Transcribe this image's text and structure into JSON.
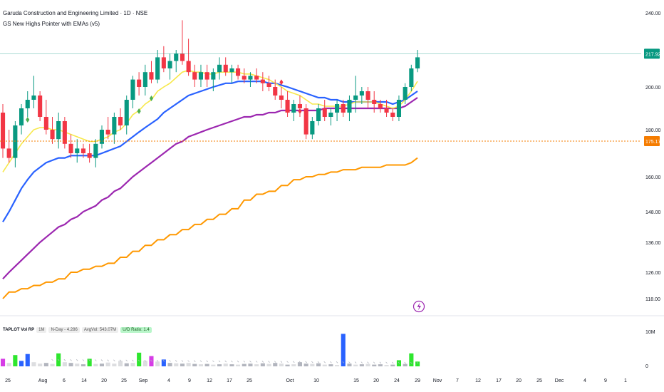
{
  "header": {
    "title": "Garuda Construction and Engineering Limited · 1D · NSE",
    "indicator": "GS New Highs Pointer with EMAs (v5)"
  },
  "volume_header": {
    "name": "TAPLOT Vol RP",
    "chips": [
      "1M",
      "N-Day - 4.286",
      "AvgVol: 543.07M",
      "U/D Ratio: 1.4"
    ]
  },
  "colors": {
    "up": "#089981",
    "down": "#f23645",
    "ema_fast": "#f7e84a",
    "ema_blue": "#2962ff",
    "ema_purple": "#9c27b0",
    "step": "#ff9800",
    "diamond": "#4caf50",
    "last_price": "#089981",
    "level_price": "#f57c00",
    "vol_green": "#2ee62e",
    "vol_blue": "#2962ff",
    "vol_magenta": "#d63ce6",
    "vol_gray": "#b2b5be",
    "vol_light": "#dcdde0",
    "alert_icon": "#9c27b0"
  },
  "chart_data": {
    "type": "candlestick",
    "timeframe": "1D",
    "y_axis_ticks": [
      "240.00",
      "200.00",
      "180.00",
      "160.00",
      "148.00",
      "136.00",
      "126.00",
      "118.00"
    ],
    "x_axis_ticks": [
      "25",
      "Aug",
      "6",
      "14",
      "20",
      "25",
      "Sep",
      "4",
      "9",
      "12",
      "17",
      "25",
      "Oct",
      "10",
      "15",
      "20",
      "24",
      "29",
      "Nov",
      "7",
      "12",
      "17",
      "20",
      "25",
      "Dec",
      "4",
      "9",
      "1"
    ],
    "last_price_label": "217.92",
    "level_label": "175.17",
    "volume_axis_ticks": [
      "10M",
      "0"
    ],
    "candles": [
      {
        "o": 188,
        "h": 192,
        "l": 168,
        "c": 172
      },
      {
        "o": 172,
        "h": 180,
        "l": 166,
        "c": 168
      },
      {
        "o": 168,
        "h": 184,
        "l": 164,
        "c": 182
      },
      {
        "o": 182,
        "h": 192,
        "l": 178,
        "c": 190
      },
      {
        "o": 190,
        "h": 198,
        "l": 186,
        "c": 194
      },
      {
        "o": 194,
        "h": 206,
        "l": 190,
        "c": 196
      },
      {
        "o": 196,
        "h": 198,
        "l": 184,
        "c": 186
      },
      {
        "o": 186,
        "h": 194,
        "l": 178,
        "c": 180
      },
      {
        "o": 180,
        "h": 186,
        "l": 174,
        "c": 176
      },
      {
        "o": 176,
        "h": 188,
        "l": 172,
        "c": 184
      },
      {
        "o": 184,
        "h": 186,
        "l": 172,
        "c": 174
      },
      {
        "o": 174,
        "h": 178,
        "l": 168,
        "c": 170
      },
      {
        "o": 170,
        "h": 176,
        "l": 166,
        "c": 172
      },
      {
        "o": 172,
        "h": 174,
        "l": 168,
        "c": 170
      },
      {
        "o": 170,
        "h": 174,
        "l": 166,
        "c": 168
      },
      {
        "o": 168,
        "h": 176,
        "l": 164,
        "c": 174
      },
      {
        "o": 174,
        "h": 182,
        "l": 172,
        "c": 180
      },
      {
        "o": 180,
        "h": 186,
        "l": 176,
        "c": 178
      },
      {
        "o": 178,
        "h": 188,
        "l": 174,
        "c": 186
      },
      {
        "o": 186,
        "h": 190,
        "l": 180,
        "c": 182
      },
      {
        "o": 182,
        "h": 196,
        "l": 178,
        "c": 194
      },
      {
        "o": 194,
        "h": 206,
        "l": 190,
        "c": 204
      },
      {
        "o": 204,
        "h": 208,
        "l": 196,
        "c": 200
      },
      {
        "o": 200,
        "h": 212,
        "l": 196,
        "c": 208
      },
      {
        "o": 208,
        "h": 214,
        "l": 202,
        "c": 204
      },
      {
        "o": 204,
        "h": 220,
        "l": 202,
        "c": 216
      },
      {
        "o": 216,
        "h": 222,
        "l": 208,
        "c": 210
      },
      {
        "o": 210,
        "h": 218,
        "l": 204,
        "c": 214
      },
      {
        "o": 214,
        "h": 220,
        "l": 208,
        "c": 218
      },
      {
        "o": 218,
        "h": 236,
        "l": 212,
        "c": 214
      },
      {
        "o": 214,
        "h": 226,
        "l": 206,
        "c": 208
      },
      {
        "o": 208,
        "h": 212,
        "l": 200,
        "c": 204
      },
      {
        "o": 204,
        "h": 212,
        "l": 200,
        "c": 208
      },
      {
        "o": 208,
        "h": 212,
        "l": 200,
        "c": 204
      },
      {
        "o": 204,
        "h": 210,
        "l": 198,
        "c": 208
      },
      {
        "o": 208,
        "h": 216,
        "l": 204,
        "c": 212
      },
      {
        "o": 212,
        "h": 216,
        "l": 206,
        "c": 208
      },
      {
        "o": 208,
        "h": 212,
        "l": 202,
        "c": 210
      },
      {
        "o": 210,
        "h": 212,
        "l": 204,
        "c": 206
      },
      {
        "o": 206,
        "h": 210,
        "l": 202,
        "c": 204
      },
      {
        "o": 204,
        "h": 208,
        "l": 200,
        "c": 206
      },
      {
        "o": 206,
        "h": 210,
        "l": 202,
        "c": 204
      },
      {
        "o": 204,
        "h": 208,
        "l": 198,
        "c": 202
      },
      {
        "o": 202,
        "h": 206,
        "l": 198,
        "c": 200
      },
      {
        "o": 200,
        "h": 204,
        "l": 194,
        "c": 196
      },
      {
        "o": 196,
        "h": 200,
        "l": 190,
        "c": 194
      },
      {
        "o": 194,
        "h": 198,
        "l": 186,
        "c": 188
      },
      {
        "o": 188,
        "h": 194,
        "l": 184,
        "c": 192
      },
      {
        "o": 192,
        "h": 196,
        "l": 186,
        "c": 190
      },
      {
        "o": 190,
        "h": 192,
        "l": 176,
        "c": 178
      },
      {
        "o": 178,
        "h": 186,
        "l": 176,
        "c": 184
      },
      {
        "o": 184,
        "h": 192,
        "l": 182,
        "c": 190
      },
      {
        "o": 190,
        "h": 194,
        "l": 184,
        "c": 186
      },
      {
        "o": 186,
        "h": 190,
        "l": 182,
        "c": 188
      },
      {
        "o": 188,
        "h": 194,
        "l": 184,
        "c": 192
      },
      {
        "o": 192,
        "h": 194,
        "l": 186,
        "c": 188
      },
      {
        "o": 188,
        "h": 196,
        "l": 184,
        "c": 194
      },
      {
        "o": 194,
        "h": 206,
        "l": 188,
        "c": 196
      },
      {
        "o": 196,
        "h": 200,
        "l": 192,
        "c": 198
      },
      {
        "o": 198,
        "h": 200,
        "l": 190,
        "c": 194
      },
      {
        "o": 194,
        "h": 198,
        "l": 188,
        "c": 192
      },
      {
        "o": 192,
        "h": 194,
        "l": 188,
        "c": 190
      },
      {
        "o": 190,
        "h": 194,
        "l": 186,
        "c": 188
      },
      {
        "o": 188,
        "h": 190,
        "l": 184,
        "c": 186
      },
      {
        "o": 186,
        "h": 196,
        "l": 184,
        "c": 194
      },
      {
        "o": 194,
        "h": 202,
        "l": 192,
        "c": 200
      },
      {
        "o": 200,
        "h": 212,
        "l": 198,
        "c": 210
      },
      {
        "o": 210,
        "h": 220,
        "l": 208,
        "c": 216
      }
    ],
    "series": [
      {
        "values": [
          162,
          166,
          170,
          174,
          177,
          180,
          181,
          181,
          180,
          180,
          179,
          178,
          177,
          176,
          175,
          175,
          176,
          177,
          179,
          180,
          183,
          187,
          189,
          192,
          194,
          198,
          200,
          202,
          205,
          208,
          209,
          208,
          208,
          207,
          207,
          208,
          208,
          208,
          208,
          207,
          207,
          206,
          205,
          204,
          202,
          200,
          198,
          197,
          196,
          194,
          192,
          192,
          191,
          191,
          191,
          191,
          192,
          193,
          193,
          193,
          193,
          192,
          191,
          190,
          191,
          194,
          198,
          203
        ]
      },
      {
        "values": [
          144,
          148,
          152,
          156,
          159,
          162,
          164,
          166,
          167,
          168,
          168,
          169,
          169,
          169,
          169,
          169,
          170,
          171,
          172,
          173,
          175,
          177,
          179,
          181,
          183,
          185,
          188,
          190,
          192,
          194,
          196,
          197,
          198,
          199,
          200,
          201,
          202,
          202,
          203,
          203,
          203,
          203,
          203,
          202,
          202,
          201,
          200,
          199,
          198,
          197,
          196,
          195,
          195,
          194,
          194,
          193,
          193,
          193,
          193,
          193,
          193,
          193,
          193,
          192,
          193,
          194,
          196,
          198
        ]
      },
      {
        "values": [
          124,
          126,
          128,
          130,
          132,
          134,
          136,
          138,
          140,
          142,
          143,
          145,
          146,
          148,
          149,
          150,
          152,
          153,
          155,
          156,
          158,
          160,
          162,
          164,
          166,
          168,
          170,
          172,
          174,
          175,
          177,
          178,
          179,
          180,
          181,
          182,
          183,
          184,
          185,
          186,
          186,
          187,
          187,
          188,
          188,
          189,
          189,
          189,
          189,
          189,
          189,
          189,
          190,
          190,
          190,
          190,
          190,
          190,
          190,
          190,
          190,
          190,
          190,
          190,
          190,
          191,
          193,
          195
        ]
      },
      {
        "values": [
          118,
          120,
          120,
          121,
          121,
          122,
          122,
          123,
          123,
          124,
          124,
          126,
          126,
          127,
          127,
          128,
          128,
          129,
          129,
          131,
          131,
          133,
          133,
          135,
          135,
          137,
          137,
          139,
          139,
          141,
          141,
          143,
          143,
          145,
          145,
          147,
          147,
          149,
          149,
          152,
          152,
          154,
          154,
          155,
          155,
          157,
          157,
          159,
          159,
          160,
          160,
          161,
          161,
          162,
          162,
          163,
          163,
          163,
          164,
          164,
          164,
          164,
          165,
          165,
          165,
          165,
          166,
          168
        ]
      }
    ],
    "diamonds": [
      {
        "i": 4,
        "v": 186,
        "pos": "below",
        "color": "green"
      },
      {
        "i": 22,
        "v": 190,
        "pos": "below",
        "color": "green"
      },
      {
        "i": 24,
        "v": 196,
        "pos": "below",
        "color": "green"
      },
      {
        "i": 45,
        "v": 201,
        "pos": "above",
        "color": "red"
      },
      {
        "i": 48,
        "v": 190,
        "pos": "below",
        "color": "red"
      }
    ],
    "volume": [
      {
        "v": 2.2,
        "c": "vol_magenta"
      },
      {
        "v": 1.0,
        "c": "vol_light"
      },
      {
        "v": 3.3,
        "c": "vol_green"
      },
      {
        "v": 1.6,
        "c": "vol_blue"
      },
      {
        "v": 3.6,
        "c": "vol_blue"
      },
      {
        "v": 1.2,
        "c": "vol_light"
      },
      {
        "v": 0.8,
        "c": "vol_light"
      },
      {
        "v": 1.0,
        "c": "vol_gray"
      },
      {
        "v": 0.7,
        "c": "vol_light"
      },
      {
        "v": 3.8,
        "c": "vol_green"
      },
      {
        "v": 1.2,
        "c": "vol_light"
      },
      {
        "v": 1.0,
        "c": "vol_gray"
      },
      {
        "v": 0.8,
        "c": "vol_light"
      },
      {
        "v": 0.6,
        "c": "vol_gray"
      },
      {
        "v": 2.2,
        "c": "vol_green"
      },
      {
        "v": 0.7,
        "c": "vol_light"
      },
      {
        "v": 0.8,
        "c": "vol_gray"
      },
      {
        "v": 1.1,
        "c": "vol_light"
      },
      {
        "v": 0.8,
        "c": "vol_light"
      },
      {
        "v": 1.6,
        "c": "vol_light"
      },
      {
        "v": 0.9,
        "c": "vol_gray"
      },
      {
        "v": 1.0,
        "c": "vol_light"
      },
      {
        "v": 4.0,
        "c": "vol_green"
      },
      {
        "v": 1.6,
        "c": "vol_light"
      },
      {
        "v": 3.0,
        "c": "vol_magenta"
      },
      {
        "v": 1.4,
        "c": "vol_light"
      },
      {
        "v": 2.0,
        "c": "vol_blue"
      },
      {
        "v": 1.0,
        "c": "vol_gray"
      },
      {
        "v": 0.9,
        "c": "vol_light"
      },
      {
        "v": 0.8,
        "c": "vol_gray"
      },
      {
        "v": 1.0,
        "c": "vol_light"
      },
      {
        "v": 0.7,
        "c": "vol_gray"
      },
      {
        "v": 0.6,
        "c": "vol_light"
      },
      {
        "v": 0.7,
        "c": "vol_gray"
      },
      {
        "v": 0.5,
        "c": "vol_light"
      },
      {
        "v": 0.6,
        "c": "vol_gray"
      },
      {
        "v": 0.8,
        "c": "vol_light"
      },
      {
        "v": 0.6,
        "c": "vol_gray"
      },
      {
        "v": 0.5,
        "c": "vol_light"
      },
      {
        "v": 0.7,
        "c": "vol_gray"
      },
      {
        "v": 0.8,
        "c": "vol_gray"
      },
      {
        "v": 0.6,
        "c": "vol_light"
      },
      {
        "v": 0.9,
        "c": "vol_gray"
      },
      {
        "v": 0.7,
        "c": "vol_light"
      },
      {
        "v": 1.0,
        "c": "vol_gray"
      },
      {
        "v": 0.8,
        "c": "vol_light"
      },
      {
        "v": 0.5,
        "c": "vol_gray"
      },
      {
        "v": 0.6,
        "c": "vol_light"
      },
      {
        "v": 1.2,
        "c": "vol_gray"
      },
      {
        "v": 0.8,
        "c": "vol_gray"
      },
      {
        "v": 0.7,
        "c": "vol_light"
      },
      {
        "v": 0.9,
        "c": "vol_gray"
      },
      {
        "v": 0.5,
        "c": "vol_light"
      },
      {
        "v": 0.6,
        "c": "vol_gray"
      },
      {
        "v": 0.4,
        "c": "vol_light"
      },
      {
        "v": 9.5,
        "c": "vol_blue"
      },
      {
        "v": 0.8,
        "c": "vol_gray"
      },
      {
        "v": 0.5,
        "c": "vol_light"
      },
      {
        "v": 0.6,
        "c": "vol_gray"
      },
      {
        "v": 0.7,
        "c": "vol_light"
      },
      {
        "v": 0.5,
        "c": "vol_gray"
      },
      {
        "v": 0.6,
        "c": "vol_gray"
      },
      {
        "v": 0.4,
        "c": "vol_light"
      },
      {
        "v": 0.5,
        "c": "vol_gray"
      },
      {
        "v": 1.8,
        "c": "vol_green"
      },
      {
        "v": 0.7,
        "c": "vol_gray"
      },
      {
        "v": 3.8,
        "c": "vol_green"
      },
      {
        "v": 1.4,
        "c": "vol_green"
      }
    ]
  }
}
